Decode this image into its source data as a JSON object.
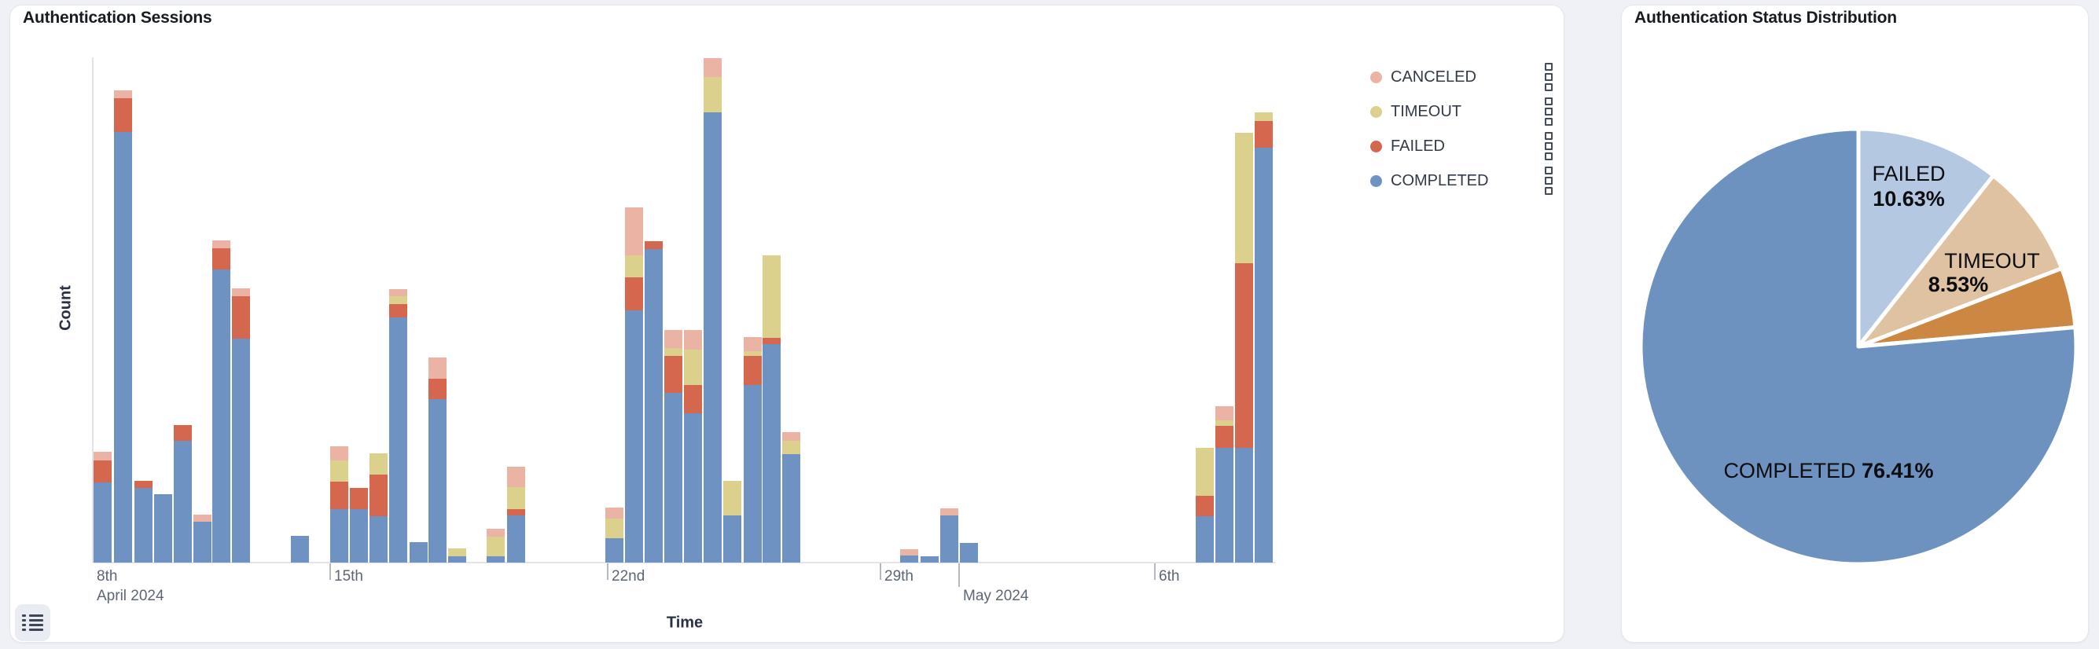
{
  "sessions_card": {
    "title": "Authentication Sessions",
    "x_axis_title": "Time",
    "y_axis_title": "Count",
    "legend_items": [
      {
        "label": "CANCELED",
        "color": "#eab3a4"
      },
      {
        "label": "TIMEOUT",
        "color": "#dbd18d"
      },
      {
        "label": "FAILED",
        "color": "#d4674d"
      },
      {
        "label": "COMPLETED",
        "color": "#6e93c2"
      }
    ]
  },
  "distribution_card": {
    "title": "Authentication Status Distribution"
  },
  "icons": {
    "legend_toggle": "list-icon",
    "legend_item_handle": "drag-grip-icon"
  },
  "chart_data": [
    {
      "type": "bar",
      "title": "Authentication Sessions",
      "stacked": true,
      "xlabel": "Time",
      "ylabel": "Count",
      "grid": false,
      "legend_position": "top-right",
      "y_axis_numeric_labels_visible": false,
      "units": "sessions (relative estimate; y axis shows no numbers)",
      "ylim": [
        0,
        650
      ],
      "series_order_bottom_to_top": [
        "COMPLETED",
        "FAILED",
        "TIMEOUT",
        "CANCELED"
      ],
      "colors": {
        "COMPLETED": "#6e93c2",
        "FAILED": "#d4674d",
        "TIMEOUT": "#dbd18d",
        "CANCELED": "#eab3a4"
      },
      "x_ticks": [
        {
          "label": "8th",
          "sublabel": "April 2024",
          "px": 117,
          "tick_mark": false,
          "long": false
        },
        {
          "label": "15th",
          "sublabel": "",
          "px": 419,
          "tick_mark": true,
          "long": false
        },
        {
          "label": "22nd",
          "sublabel": "",
          "px": 772,
          "tick_mark": true,
          "long": false
        },
        {
          "label": "29th",
          "sublabel": "",
          "px": 1119,
          "tick_mark": true,
          "long": false
        },
        {
          "label": "",
          "sublabel": "May 2024",
          "px": 1219,
          "tick_mark": true,
          "long": true
        },
        {
          "label": "6th",
          "sublabel": "",
          "px": 1468,
          "tick_mark": true,
          "long": false
        }
      ],
      "bars": [
        {
          "t": "Apr 9 AM",
          "px": 118,
          "COMPLETED": 102,
          "FAILED": 28,
          "TIMEOUT": 0,
          "CANCELED": 11
        },
        {
          "t": "Apr 9 PM",
          "px": 144,
          "COMPLETED": 548,
          "FAILED": 43,
          "TIMEOUT": 0,
          "CANCELED": 10
        },
        {
          "t": "Apr 10 AM",
          "px": 170,
          "COMPLETED": 95,
          "FAILED": 9,
          "TIMEOUT": 0,
          "CANCELED": 0
        },
        {
          "t": "Apr 10 PM",
          "px": 195,
          "COMPLETED": 87,
          "FAILED": 0,
          "TIMEOUT": 0,
          "CANCELED": 0
        },
        {
          "t": "Apr 11 AM",
          "px": 220,
          "COMPLETED": 155,
          "FAILED": 20,
          "TIMEOUT": 0,
          "CANCELED": 0
        },
        {
          "t": "Apr 11 PM",
          "px": 245,
          "COMPLETED": 52,
          "FAILED": 0,
          "TIMEOUT": 0,
          "CANCELED": 9
        },
        {
          "t": "Apr 12 AM",
          "px": 269,
          "COMPLETED": 373,
          "FAILED": 27,
          "TIMEOUT": 0,
          "CANCELED": 10
        },
        {
          "t": "Apr 12 PM",
          "px": 294,
          "COMPLETED": 285,
          "FAILED": 54,
          "TIMEOUT": 0,
          "CANCELED": 10
        },
        {
          "t": "Apr 14 AM",
          "px": 369,
          "COMPLETED": 34,
          "FAILED": 0,
          "TIMEOUT": 0,
          "CANCELED": 0
        },
        {
          "t": "Apr 15 AM",
          "px": 419,
          "COMPLETED": 68,
          "FAILED": 35,
          "TIMEOUT": 27,
          "CANCELED": 18
        },
        {
          "t": "Apr 15 PM",
          "px": 444,
          "COMPLETED": 68,
          "FAILED": 27,
          "TIMEOUT": 0,
          "CANCELED": 0
        },
        {
          "t": "Apr 16 AM",
          "px": 469,
          "COMPLETED": 59,
          "FAILED": 53,
          "TIMEOUT": 27,
          "CANCELED": 0
        },
        {
          "t": "Apr 16 PM",
          "px": 494,
          "COMPLETED": 312,
          "FAILED": 17,
          "TIMEOUT": 10,
          "CANCELED": 9
        },
        {
          "t": "Apr 17 AM",
          "px": 520,
          "COMPLETED": 26,
          "FAILED": 0,
          "TIMEOUT": 0,
          "CANCELED": 0
        },
        {
          "t": "Apr 17 PM",
          "px": 544,
          "COMPLETED": 208,
          "FAILED": 26,
          "TIMEOUT": 0,
          "CANCELED": 27
        },
        {
          "t": "Apr 18 AM",
          "px": 569,
          "COMPLETED": 8,
          "FAILED": 0,
          "TIMEOUT": 10,
          "CANCELED": 0
        },
        {
          "t": "Apr 19 AM",
          "px": 618,
          "COMPLETED": 8,
          "FAILED": 0,
          "TIMEOUT": 25,
          "CANCELED": 10
        },
        {
          "t": "Apr 19 PM",
          "px": 644,
          "COMPLETED": 60,
          "FAILED": 8,
          "TIMEOUT": 28,
          "CANCELED": 26
        },
        {
          "t": "Apr 22 AM",
          "px": 769,
          "COMPLETED": 31,
          "FAILED": 0,
          "TIMEOUT": 25,
          "CANCELED": 14
        },
        {
          "t": "Apr 22 PM",
          "px": 794,
          "COMPLETED": 321,
          "FAILED": 42,
          "TIMEOUT": 28,
          "CANCELED": 61
        },
        {
          "t": "Apr 23 AM",
          "px": 819,
          "COMPLETED": 399,
          "FAILED": 10,
          "TIMEOUT": 0,
          "CANCELED": 0
        },
        {
          "t": "Apr 23 PM",
          "px": 844,
          "COMPLETED": 216,
          "FAILED": 47,
          "TIMEOUT": 10,
          "CANCELED": 23
        },
        {
          "t": "Apr 24 AM",
          "px": 869,
          "COMPLETED": 190,
          "FAILED": 36,
          "TIMEOUT": 45,
          "CANCELED": 25
        },
        {
          "t": "Apr 24 PM",
          "px": 894,
          "COMPLETED": 573,
          "FAILED": 0,
          "TIMEOUT": 45,
          "CANCELED": 24
        },
        {
          "t": "Apr 25 AM",
          "px": 919,
          "COMPLETED": 60,
          "FAILED": 0,
          "TIMEOUT": 44,
          "CANCELED": 0
        },
        {
          "t": "Apr 25 PM",
          "px": 945,
          "COMPLETED": 226,
          "FAILED": 37,
          "TIMEOUT": 6,
          "CANCELED": 18
        },
        {
          "t": "Apr 26 AM",
          "px": 969,
          "COMPLETED": 278,
          "FAILED": 8,
          "TIMEOUT": 105,
          "CANCELED": 0
        },
        {
          "t": "Apr 26 PM",
          "px": 994,
          "COMPLETED": 138,
          "FAILED": 0,
          "TIMEOUT": 17,
          "CANCELED": 11
        },
        {
          "t": "Apr 29 PM",
          "px": 1144,
          "COMPLETED": 9,
          "FAILED": 0,
          "TIMEOUT": 0,
          "CANCELED": 8
        },
        {
          "t": "Apr 30 AM",
          "px": 1170,
          "COMPLETED": 8,
          "FAILED": 0,
          "TIMEOUT": 0,
          "CANCELED": 0
        },
        {
          "t": "Apr 30 PM",
          "px": 1195,
          "COMPLETED": 60,
          "FAILED": 0,
          "TIMEOUT": 0,
          "CANCELED": 9
        },
        {
          "t": "May 1 AM",
          "px": 1220,
          "COMPLETED": 25,
          "FAILED": 0,
          "TIMEOUT": 0,
          "CANCELED": 0
        },
        {
          "t": "May 7 AM",
          "px": 1520,
          "COMPLETED": 59,
          "FAILED": 26,
          "TIMEOUT": 61,
          "CANCELED": 0
        },
        {
          "t": "May 7 PM",
          "px": 1545,
          "COMPLETED": 146,
          "FAILED": 28,
          "TIMEOUT": 7,
          "CANCELED": 18
        },
        {
          "t": "May 8 AM",
          "px": 1570,
          "COMPLETED": 146,
          "FAILED": 235,
          "TIMEOUT": 166,
          "CANCELED": 0
        },
        {
          "t": "May 8 PM",
          "px": 1595,
          "COMPLETED": 528,
          "FAILED": 34,
          "TIMEOUT": 11,
          "CANCELED": 0
        }
      ]
    },
    {
      "type": "pie",
      "title": "Authentication Status Distribution",
      "start_angle": "12 o'clock, clockwise",
      "slices": [
        {
          "label": "FAILED",
          "pct": 10.63,
          "color": "#b5c8e1",
          "name_text": "FAILED",
          "pct_text": "10.63%",
          "labeled": true,
          "label_layout": "two-line"
        },
        {
          "label": "TIMEOUT",
          "pct": 8.53,
          "color": "#dfc2a2",
          "name_text": "TIMEOUT",
          "pct_text": "8.53%",
          "labeled": true,
          "label_layout": "two-line"
        },
        {
          "label": "CANCELED",
          "pct": 4.43,
          "color": "#cc8743",
          "name_text": "",
          "pct_text": "",
          "labeled": false,
          "label_layout": "none"
        },
        {
          "label": "COMPLETED",
          "pct": 76.41,
          "color": "#6e92bf",
          "name_text": "COMPLETED",
          "pct_text": "76.41%",
          "labeled": true,
          "label_layout": "one-line"
        }
      ]
    }
  ]
}
